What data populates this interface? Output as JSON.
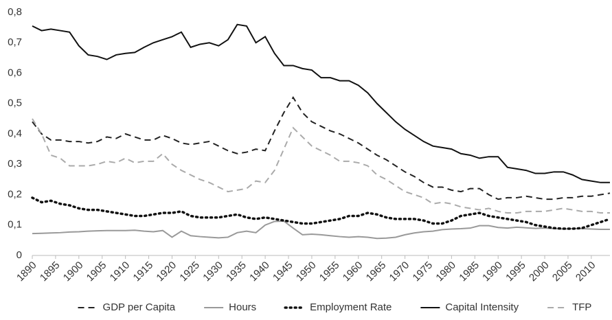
{
  "chart_data": {
    "type": "line",
    "x": [
      1890,
      1892,
      1894,
      1896,
      1898,
      1900,
      1902,
      1904,
      1906,
      1908,
      1910,
      1912,
      1914,
      1916,
      1918,
      1920,
      1922,
      1924,
      1926,
      1928,
      1930,
      1932,
      1934,
      1936,
      1938,
      1940,
      1942,
      1944,
      1946,
      1948,
      1950,
      1952,
      1954,
      1956,
      1958,
      1960,
      1962,
      1964,
      1966,
      1968,
      1970,
      1972,
      1974,
      1976,
      1978,
      1980,
      1982,
      1984,
      1986,
      1988,
      1990,
      1992,
      1994,
      1996,
      1998,
      2000,
      2002,
      2004,
      2006,
      2008,
      2010,
      2012,
      2014
    ],
    "xlim": [
      1890,
      2014
    ],
    "xticks": [
      1890,
      1895,
      1900,
      1905,
      1910,
      1915,
      1920,
      1925,
      1930,
      1935,
      1940,
      1945,
      1950,
      1955,
      1960,
      1965,
      1970,
      1975,
      1980,
      1985,
      1990,
      1995,
      2000,
      2005,
      2010
    ],
    "ylim": [
      0,
      0.8
    ],
    "yticks": [
      0,
      {
        "value": 0.1,
        "label": "0,1"
      },
      {
        "value": 0.2,
        "label": "0,2"
      },
      {
        "value": 0.3,
        "label": "0,3"
      },
      {
        "value": 0.4,
        "label": "0,4"
      },
      {
        "value": 0.5,
        "label": "0,5"
      },
      {
        "value": 0.6,
        "label": "0,6"
      },
      {
        "value": 0.7,
        "label": "0,7"
      },
      {
        "value": 0.8,
        "label": "0,8"
      }
    ],
    "legend": "bottom",
    "series": [
      {
        "name": "GDP per Capita",
        "color": "#222222",
        "dash": "dashed",
        "values": [
          0.44,
          0.4,
          0.38,
          0.38,
          0.375,
          0.375,
          0.37,
          0.375,
          0.39,
          0.385,
          0.4,
          0.39,
          0.38,
          0.38,
          0.395,
          0.385,
          0.37,
          0.365,
          0.37,
          0.375,
          0.36,
          0.345,
          0.335,
          0.34,
          0.35,
          0.345,
          0.41,
          0.47,
          0.52,
          0.47,
          0.44,
          0.425,
          0.41,
          0.4,
          0.385,
          0.37,
          0.35,
          0.33,
          0.315,
          0.295,
          0.275,
          0.26,
          0.24,
          0.225,
          0.225,
          0.215,
          0.21,
          0.22,
          0.22,
          0.2,
          0.185,
          0.19,
          0.19,
          0.195,
          0.19,
          0.185,
          0.185,
          0.19,
          0.19,
          0.195,
          0.195,
          0.2,
          0.205
        ]
      },
      {
        "name": "Hours",
        "color": "#999999",
        "dash": "solid",
        "values": [
          0.072,
          0.073,
          0.074,
          0.075,
          0.077,
          0.078,
          0.08,
          0.081,
          0.082,
          0.082,
          0.082,
          0.083,
          0.08,
          0.078,
          0.082,
          0.06,
          0.08,
          0.065,
          0.062,
          0.06,
          0.058,
          0.06,
          0.075,
          0.08,
          0.075,
          0.1,
          0.112,
          0.113,
          0.09,
          0.068,
          0.07,
          0.068,
          0.065,
          0.062,
          0.06,
          0.062,
          0.06,
          0.056,
          0.057,
          0.06,
          0.068,
          0.074,
          0.078,
          0.08,
          0.085,
          0.087,
          0.088,
          0.09,
          0.098,
          0.098,
          0.092,
          0.09,
          0.093,
          0.091,
          0.089,
          0.09,
          0.088,
          0.087,
          0.088,
          0.088,
          0.087,
          0.086,
          0.086
        ]
      },
      {
        "name": "Employment Rate",
        "color": "#111111",
        "dash": "dotted",
        "values": [
          0.19,
          0.175,
          0.18,
          0.17,
          0.165,
          0.155,
          0.15,
          0.15,
          0.145,
          0.14,
          0.135,
          0.13,
          0.13,
          0.135,
          0.14,
          0.14,
          0.145,
          0.13,
          0.125,
          0.125,
          0.125,
          0.13,
          0.135,
          0.125,
          0.12,
          0.125,
          0.12,
          0.115,
          0.11,
          0.105,
          0.105,
          0.11,
          0.115,
          0.12,
          0.13,
          0.13,
          0.14,
          0.135,
          0.125,
          0.12,
          0.12,
          0.12,
          0.115,
          0.105,
          0.105,
          0.115,
          0.13,
          0.135,
          0.14,
          0.13,
          0.125,
          0.12,
          0.115,
          0.11,
          0.1,
          0.095,
          0.09,
          0.088,
          0.088,
          0.09,
          0.1,
          0.11,
          0.12
        ]
      },
      {
        "name": "Capital Intensity",
        "color": "#111111",
        "dash": "solid",
        "values": [
          0.755,
          0.74,
          0.745,
          0.74,
          0.735,
          0.69,
          0.66,
          0.655,
          0.645,
          0.66,
          0.665,
          0.668,
          0.685,
          0.7,
          0.71,
          0.72,
          0.735,
          0.685,
          0.695,
          0.7,
          0.69,
          0.71,
          0.76,
          0.755,
          0.7,
          0.72,
          0.665,
          0.625,
          0.625,
          0.615,
          0.61,
          0.585,
          0.585,
          0.575,
          0.575,
          0.56,
          0.535,
          0.5,
          0.47,
          0.44,
          0.415,
          0.395,
          0.375,
          0.36,
          0.355,
          0.35,
          0.335,
          0.33,
          0.32,
          0.325,
          0.325,
          0.29,
          0.285,
          0.28,
          0.27,
          0.27,
          0.275,
          0.275,
          0.265,
          0.25,
          0.245,
          0.24,
          0.24
        ]
      },
      {
        "name": "TFP",
        "color": "#aaaaaa",
        "dash": "dashed",
        "values": [
          0.45,
          0.4,
          0.33,
          0.32,
          0.295,
          0.295,
          0.295,
          0.3,
          0.31,
          0.305,
          0.32,
          0.305,
          0.31,
          0.31,
          0.335,
          0.3,
          0.28,
          0.265,
          0.25,
          0.24,
          0.225,
          0.21,
          0.215,
          0.22,
          0.245,
          0.24,
          0.28,
          0.35,
          0.42,
          0.39,
          0.36,
          0.345,
          0.33,
          0.31,
          0.31,
          0.305,
          0.295,
          0.265,
          0.25,
          0.23,
          0.21,
          0.2,
          0.19,
          0.17,
          0.175,
          0.17,
          0.16,
          0.155,
          0.15,
          0.155,
          0.145,
          0.14,
          0.14,
          0.145,
          0.145,
          0.145,
          0.15,
          0.155,
          0.15,
          0.145,
          0.145,
          0.14,
          0.14
        ]
      }
    ]
  }
}
